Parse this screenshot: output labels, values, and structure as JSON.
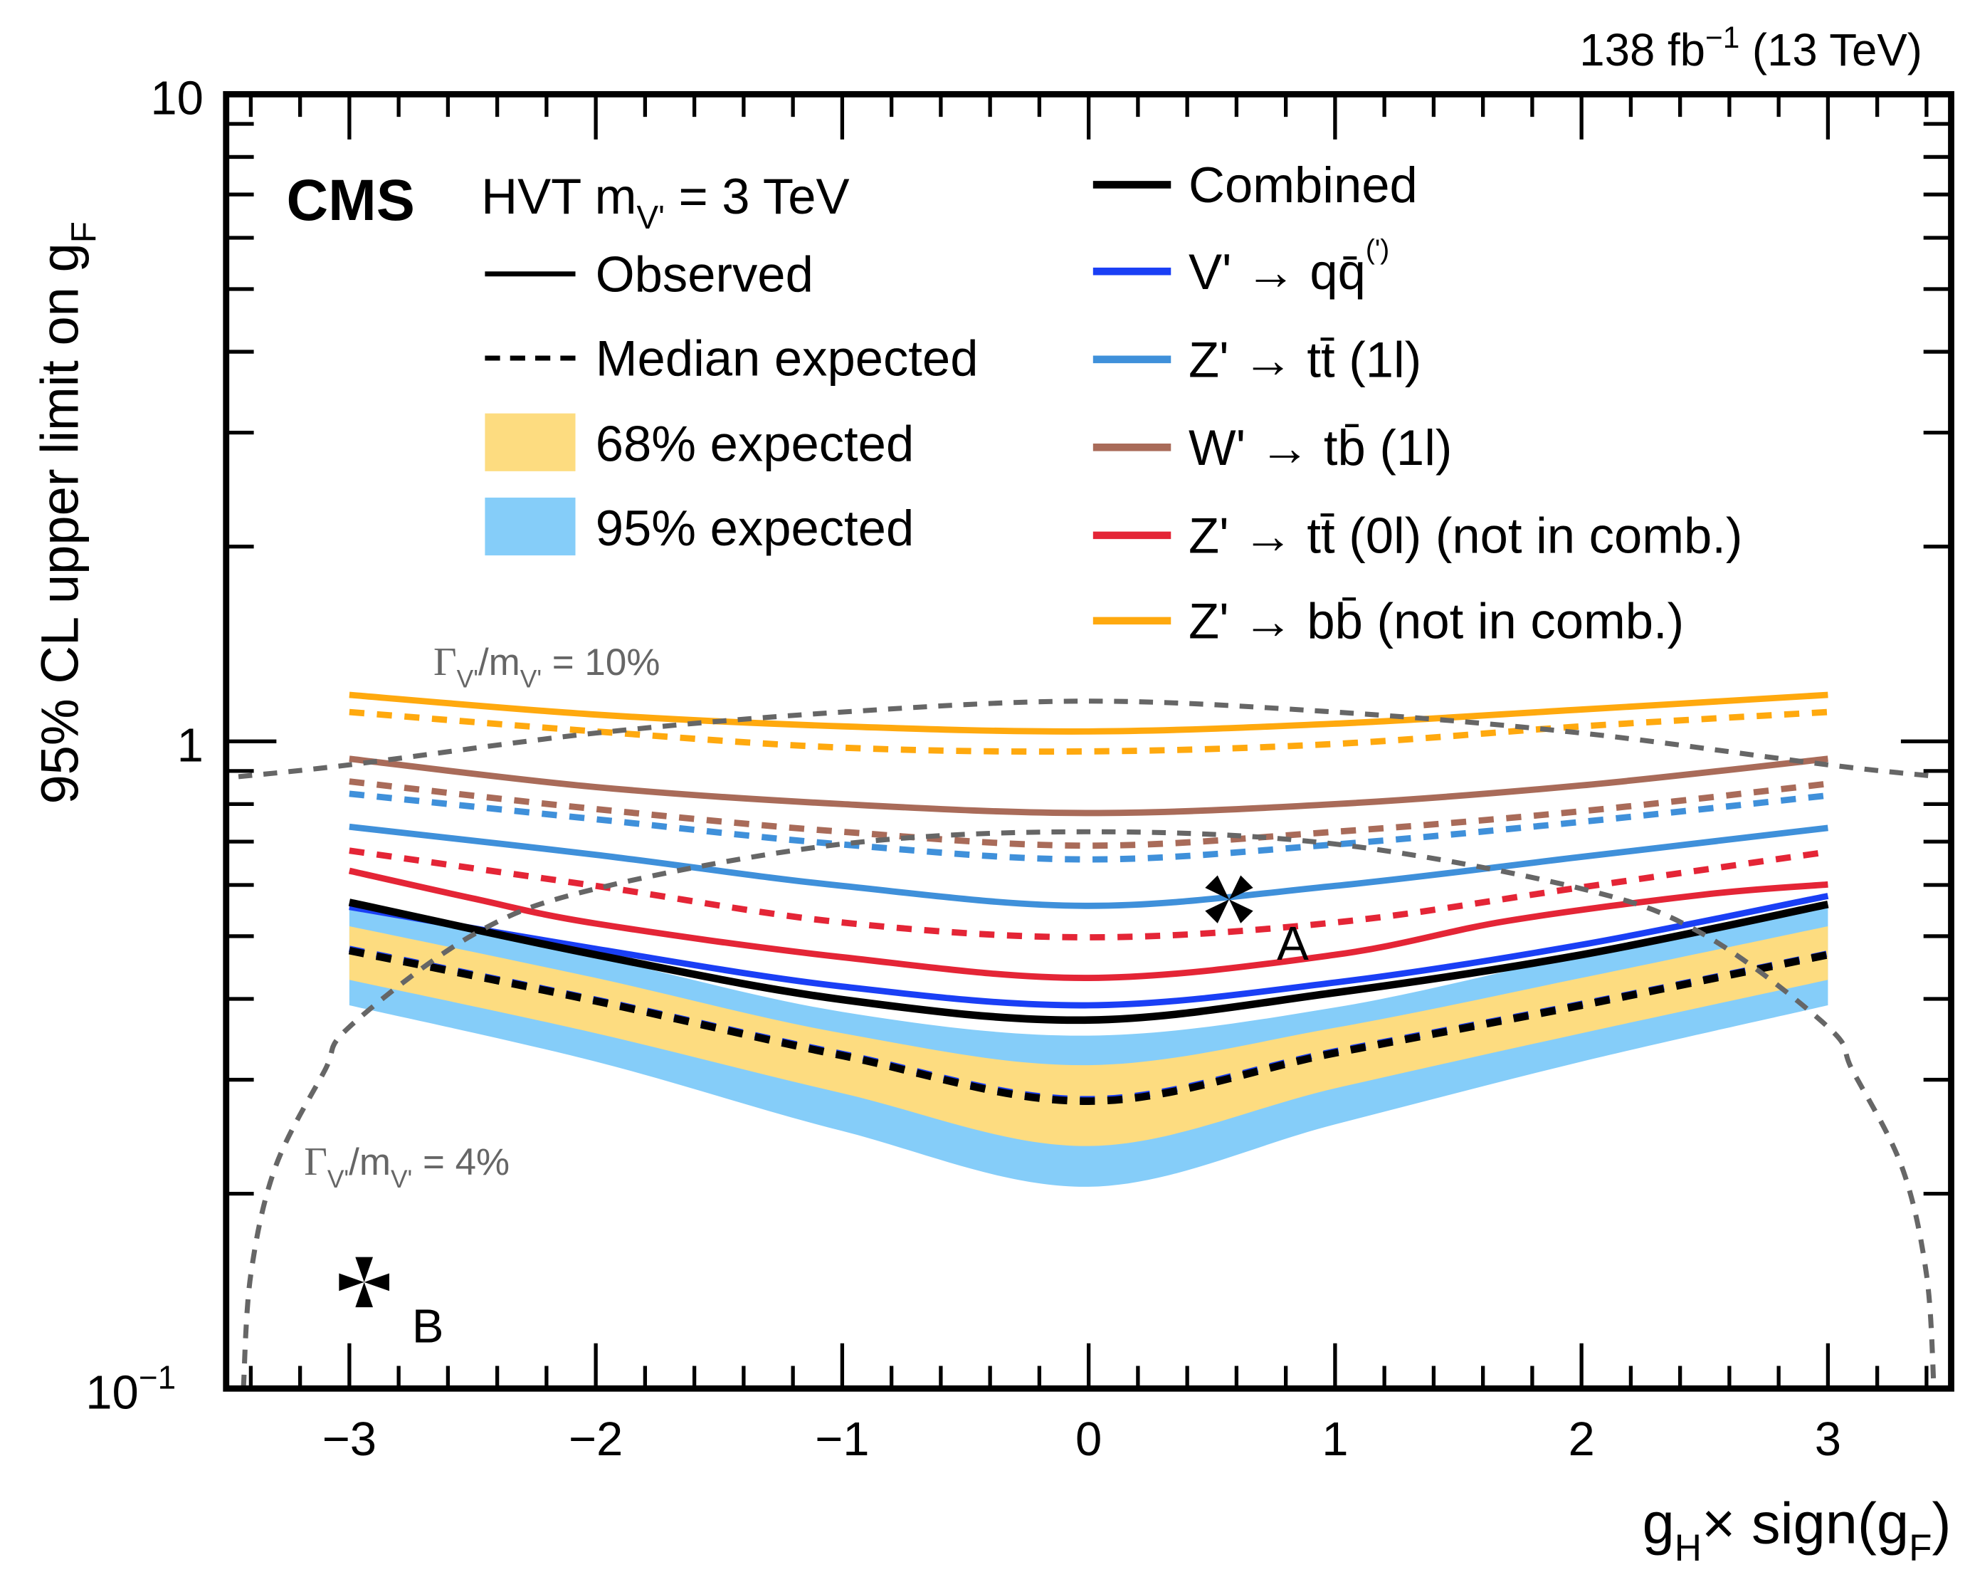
{
  "chart_data": {
    "type": "line",
    "title": "",
    "lumi_label": "138 fb",
    "lumi_exp": "−1",
    "energy_label": "(13 TeV)",
    "experiment": "CMS",
    "model_label": "HVT m",
    "model_sub": "V'",
    "model_value": "= 3 TeV",
    "xlabel": "g",
    "xlabel_sub": "H",
    "xlabel_rest": "× sign(g",
    "xlabel_sub2": "F",
    "xlabel_end": ")",
    "ylabel": "95% CL upper limit on g",
    "ylabel_sub": "F",
    "xlim": [
      -3.5,
      3.5
    ],
    "ylim": [
      0.1,
      10
    ],
    "yscale": "log",
    "xticks": [
      -3,
      -2,
      -1,
      0,
      1,
      2,
      3
    ],
    "xtick_labels": [
      "−3",
      "−2",
      "−1",
      "0",
      "1",
      "2",
      "3"
    ],
    "ytick_labels": [
      {
        "value": 10,
        "base": "10",
        "exp": ""
      },
      {
        "value": 1,
        "base": "1",
        "exp": ""
      },
      {
        "value": 0.1,
        "base": "10",
        "exp": "−1"
      }
    ],
    "legend_left": [
      {
        "label": "Observed",
        "style": "solid"
      },
      {
        "label": "Median expected",
        "style": "dashed"
      },
      {
        "label": "68% expected",
        "style": "band",
        "color": "#fddc80"
      },
      {
        "label": "95% expected",
        "style": "band",
        "color": "#85cdf9"
      }
    ],
    "legend_right": [
      {
        "label": "Combined",
        "color": "#000000"
      },
      {
        "label": "V' → qq̄",
        "sup": "(')",
        "color": "#1a3ff5"
      },
      {
        "label": "Z' → tt̄ (1l)",
        "color": "#3f90da"
      },
      {
        "label": "W' → tb̄ (1l)",
        "color": "#a96b59"
      },
      {
        "label": "Z' → tt̄ (0l) (not in comb.)",
        "color": "#e42536"
      },
      {
        "label": "Z' → bb̄ (not in comb.)",
        "color": "#ffa90e"
      }
    ],
    "x": [
      -3,
      -2,
      -1,
      0,
      1,
      2,
      3
    ],
    "band95": {
      "lower": [
        0.391,
        0.32,
        0.25,
        0.205,
        0.256,
        0.32,
        0.391
      ],
      "upper": [
        0.554,
        0.464,
        0.382,
        0.351,
        0.388,
        0.468,
        0.554
      ]
    },
    "band68": {
      "lower": [
        0.428,
        0.354,
        0.286,
        0.237,
        0.291,
        0.354,
        0.428
      ],
      "upper": [
        0.518,
        0.431,
        0.354,
        0.316,
        0.361,
        0.431,
        0.518
      ]
    },
    "series": [
      {
        "name": "Z' → bb̄ observed",
        "color": "#ffa90e",
        "style": "solid",
        "values": [
          1.18,
          1.1,
          1.055,
          1.036,
          1.065,
          1.12,
          1.18
        ]
      },
      {
        "name": "Z' → bb̄ expected",
        "color": "#ffa90e",
        "style": "dashed",
        "values": [
          1.11,
          1.036,
          0.978,
          0.965,
          0.991,
          1.055,
          1.11
        ]
      },
      {
        "name": "W' → tb̄ (1l) observed",
        "color": "#a96b59",
        "style": "solid",
        "values": [
          0.94,
          0.85,
          0.8,
          0.775,
          0.8,
          0.855,
          0.94
        ]
      },
      {
        "name": "W' → tb̄ (1l) expected",
        "color": "#a96b59",
        "style": "dashed",
        "values": [
          0.867,
          0.786,
          0.725,
          0.69,
          0.725,
          0.78,
          0.86
        ]
      },
      {
        "name": "Z' → tt̄ (1l) expected",
        "color": "#3f90da",
        "style": "dashed",
        "values": [
          0.83,
          0.758,
          0.693,
          0.657,
          0.693,
          0.751,
          0.825
        ]
      },
      {
        "name": "Z' → tt̄ (1l) observed",
        "color": "#3f90da",
        "style": "solid",
        "values": [
          0.738,
          0.668,
          0.598,
          0.557,
          0.598,
          0.663,
          0.735
        ]
      },
      {
        "name": "Z' → tt̄ (0l) expected",
        "color": "#e42536",
        "style": "dashed",
        "values": [
          0.678,
          0.598,
          0.525,
          0.498,
          0.525,
          0.595,
          0.675
        ]
      },
      {
        "name": "Z' → tt̄ (0l) observed",
        "color": "#e42536",
        "style": "solid",
        "x": [
          -3,
          -2.5,
          -2,
          -1,
          0,
          1,
          1.7,
          2.5,
          3
        ],
        "values": [
          0.631,
          0.572,
          0.523,
          0.464,
          0.431,
          0.468,
          0.528,
          0.58,
          0.601
        ]
      },
      {
        "name": "V' → qq̄ expected",
        "color": "#1a3ff5",
        "style": "dashed",
        "values": [
          0.478,
          0.399,
          0.329,
          0.28,
          0.332,
          0.393,
          0.47
        ]
      },
      {
        "name": "Combined expected",
        "color": "#000000",
        "style": "dashed",
        "values": [
          0.475,
          0.397,
          0.327,
          0.278,
          0.33,
          0.391,
          0.468
        ]
      },
      {
        "name": "V' → qq̄ observed",
        "color": "#1a3ff5",
        "style": "solid",
        "values": [
          0.555,
          0.478,
          0.418,
          0.391,
          0.424,
          0.485,
          0.577
        ]
      },
      {
        "name": "Combined observed",
        "color": "#000000",
        "style": "solid",
        "values": [
          0.564,
          0.468,
          0.399,
          0.371,
          0.409,
          0.468,
          0.56
        ]
      }
    ],
    "width_contours": [
      {
        "label": "Γ",
        "label_rest": "/m",
        "sub": "V'",
        "value": "= 10%",
        "x": [
          -3.45,
          -3,
          -2,
          -1,
          0,
          1,
          2,
          3,
          3.45
        ],
        "values": [
          0.882,
          0.92,
          1.03,
          1.11,
          1.154,
          1.11,
          1.03,
          0.92,
          0.882
        ]
      },
      {
        "label": "Γ",
        "label_rest": "/m",
        "sub": "V'",
        "value": "= 4%",
        "x": [
          -3.43,
          -3.4,
          -3.3,
          -3.1,
          -3,
          -2.5,
          -2,
          -1,
          0,
          1,
          2,
          2.5,
          3,
          3.1,
          3.3,
          3.4,
          3.43
        ],
        "values": [
          0.1,
          0.15,
          0.22,
          0.31,
          0.362,
          0.502,
          0.592,
          0.694,
          0.725,
          0.694,
          0.592,
          0.502,
          0.362,
          0.31,
          0.22,
          0.15,
          0.1
        ]
      }
    ],
    "benchmarks": [
      {
        "label": "A",
        "x": 0.57,
        "y": 0.57
      },
      {
        "label": "B",
        "x": -2.94,
        "y": 0.146
      }
    ]
  }
}
